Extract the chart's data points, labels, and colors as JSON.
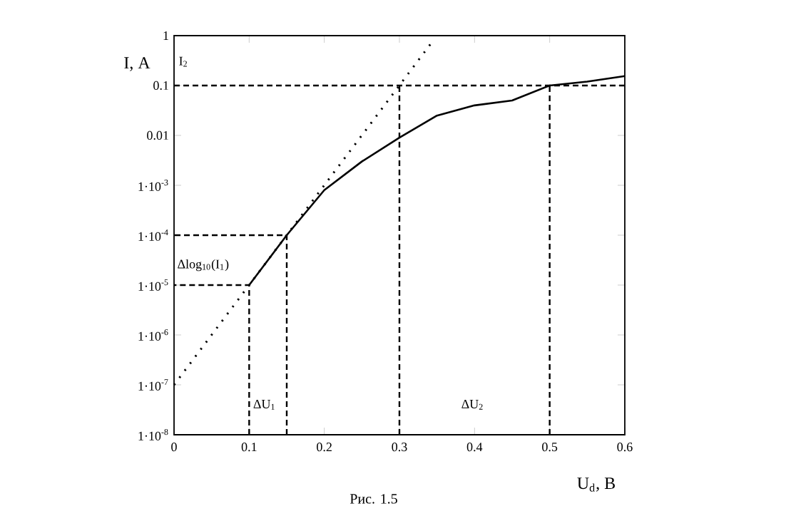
{
  "chart_data": {
    "type": "line",
    "xlabel": "U$_{d}$, B",
    "ylabel": "I, A",
    "log": "y",
    "grid": false,
    "marker": "none",
    "xlim": [
      0,
      0.6
    ],
    "xticks": [
      0,
      0.1,
      0.2,
      0.3,
      0.4,
      0.5,
      0.6
    ],
    "ylim": [
      1e-08,
      1
    ],
    "yticks": [
      {
        "value": 1e-08,
        "label": "1·10$^{-8}$"
      },
      {
        "value": 1e-07,
        "label": "1·10$^{-7}$"
      },
      {
        "value": 1e-06,
        "label": "1·10$^{-6}$"
      },
      {
        "value": 1e-05,
        "label": "1·10$^{-5}$"
      },
      {
        "value": 0.0001,
        "label": "1·10$^{-4}$"
      },
      {
        "value": 0.001,
        "label": "1·10$^{-3}$"
      },
      0.01,
      0.1,
      1
    ],
    "series": [
      {
        "color": "#000000",
        "line_style": "solid",
        "x": [
          0.1,
          0.15,
          0.2,
          0.25,
          0.3,
          0.35,
          0.4,
          0.45,
          0.5,
          0.55,
          0.6
        ],
        "values": [
          1e-05,
          0.0001,
          0.0008,
          0.003,
          0.009,
          0.025,
          0.04,
          0.05,
          0.1,
          0.12,
          0.155
        ]
      },
      {
        "color": "#000000",
        "line_style": "dotted",
        "x": [
          0,
          0.345
        ],
        "values": [
          1e-07,
          0.8
        ]
      },
      {
        "color": "#000000",
        "line_style": "dashed",
        "x": [
          0.1,
          0.1,
          0
        ],
        "values": [
          1e-08,
          1e-05,
          1e-05
        ]
      },
      {
        "color": "#000000",
        "line_style": "dashed",
        "x": [
          0.15,
          0.15,
          0
        ],
        "values": [
          1e-08,
          0.0001,
          0.0001
        ]
      },
      {
        "color": "#000000",
        "line_style": "dashed",
        "x": [
          0.3,
          0.3
        ],
        "values": [
          1e-08,
          0.1
        ]
      },
      {
        "color": "#000000",
        "line_style": "dashed",
        "x": [
          0.5,
          0.5
        ],
        "values": [
          1e-08,
          0.1
        ]
      },
      {
        "color": "#000000",
        "line_style": "dashed",
        "x": [
          0,
          0.6
        ],
        "values": [
          0.1,
          0.1
        ]
      }
    ],
    "annotations": [
      "I$_{2}$",
      "Δlog$_{10}$(I$_{1}$)",
      "ΔU$_{1}$",
      "ΔU$_{2}$",
      "Рис. 1.5"
    ]
  }
}
